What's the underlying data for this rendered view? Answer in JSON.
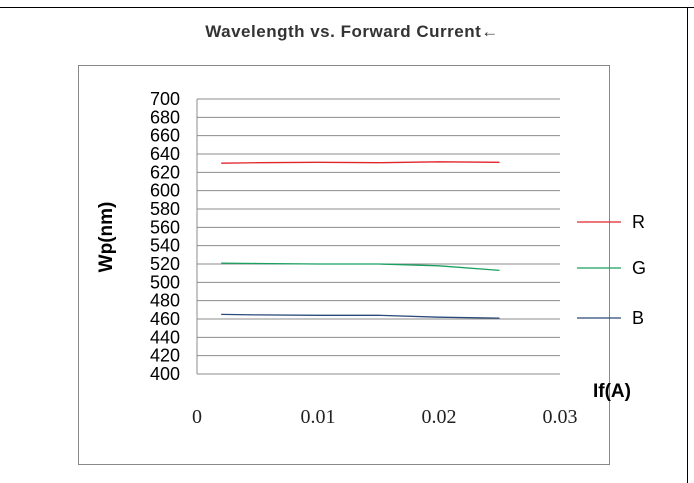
{
  "chart_data": {
    "type": "line",
    "title": "Wavelength vs. Forward Current←",
    "xlabel": "If(A)",
    "ylabel": "Wp(nm)",
    "xlim": [
      0,
      0.03
    ],
    "ylim": [
      400,
      700
    ],
    "x_ticks": [
      "0",
      "0.01",
      "0.02",
      "0.03"
    ],
    "y_ticks": [
      "400",
      "420",
      "440",
      "460",
      "480",
      "500",
      "520",
      "540",
      "560",
      "580",
      "600",
      "620",
      "640",
      "660",
      "680",
      "700"
    ],
    "grid": true,
    "legend_position": "right",
    "series": [
      {
        "name": "R",
        "color": "#e0262b",
        "x": [
          0.002,
          0.005,
          0.01,
          0.015,
          0.02,
          0.025
        ],
        "y": [
          630,
          630.5,
          631,
          630.5,
          631.5,
          631
        ]
      },
      {
        "name": "G",
        "color": "#1aa060",
        "x": [
          0.002,
          0.005,
          0.01,
          0.015,
          0.02,
          0.025
        ],
        "y": [
          521,
          520.5,
          520,
          520,
          518,
          513
        ]
      },
      {
        "name": "B",
        "color": "#2a4a7a",
        "x": [
          0.002,
          0.005,
          0.01,
          0.015,
          0.02,
          0.025
        ],
        "y": [
          465,
          464.5,
          464,
          464,
          462,
          461
        ]
      }
    ]
  }
}
